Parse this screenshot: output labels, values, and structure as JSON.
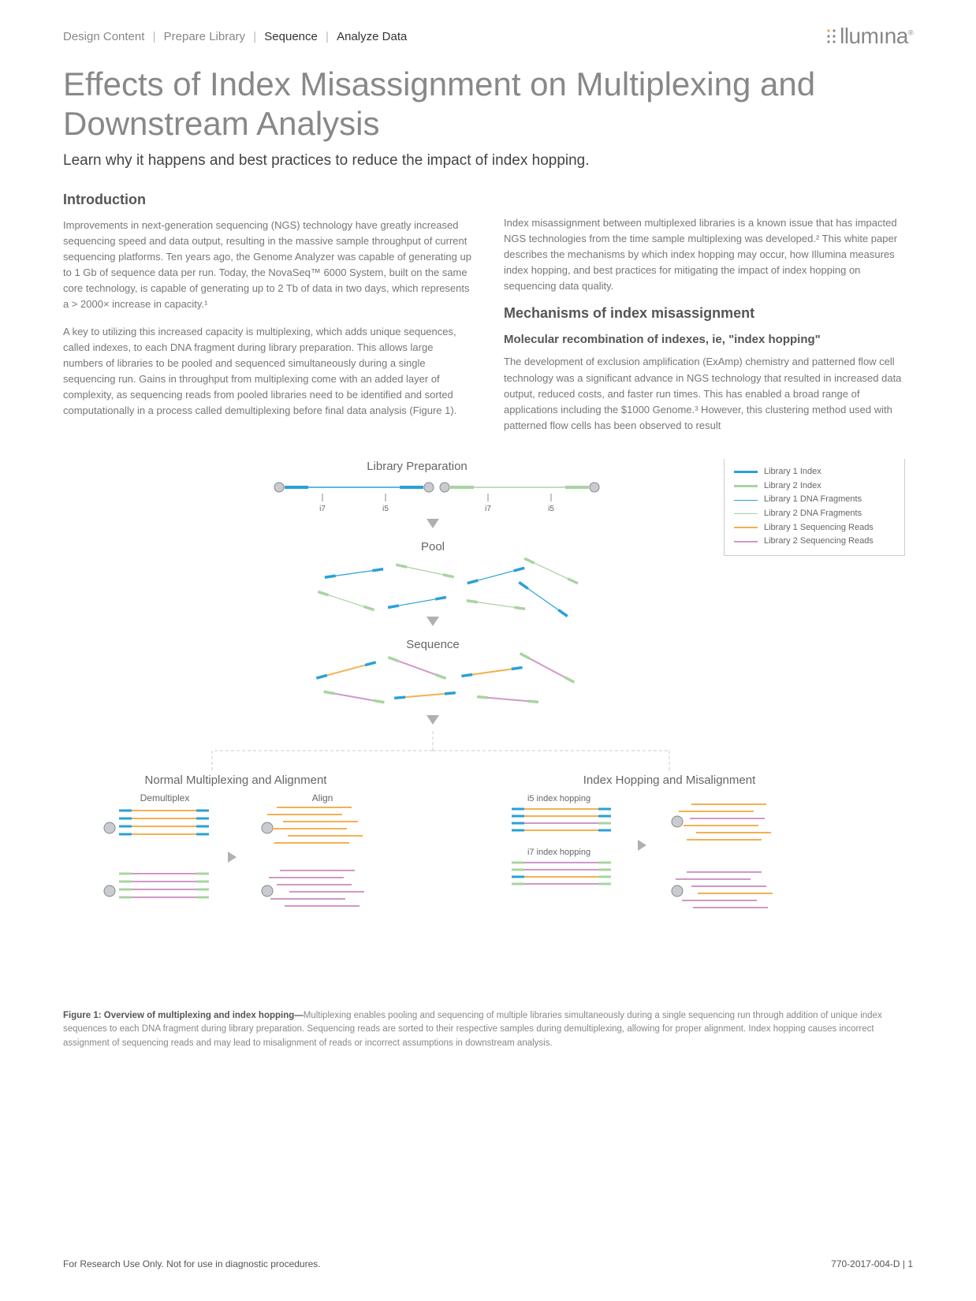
{
  "breadcrumb": {
    "items": [
      "Design Content",
      "Prepare Library",
      "Sequence",
      "Analyze Data"
    ],
    "active_from_index": 2
  },
  "logo_text": "llumına",
  "logo_trademark": "®",
  "page_title": "Effects of Index Misassignment on Multiplexing and Downstream Analysis",
  "subtitle": "Learn why it happens and best practices to reduce the impact of index hopping.",
  "intro_heading": "Introduction",
  "intro_p1": "Improvements in next-generation sequencing (NGS) technology have greatly increased sequencing speed and data output, resulting in the massive sample throughput of current sequencing platforms. Ten years ago, the Genome Analyzer was capable of generating up to 1 Gb of sequence data per run. Today, the NovaSeq™ 6000 System, built on the same core technology, is capable of generating up to 2 Tb of data in two days, which represents a > 2000× increase in capacity.¹",
  "intro_p2": "A key to utilizing this increased capacity is multiplexing, which adds unique sequences, called indexes, to each DNA fragment during library preparation. This allows large numbers of libraries to be pooled and sequenced simultaneously during a single sequencing run. Gains in throughput from multiplexing come with an added layer of complexity, as sequencing reads from pooled libraries need to be identified and sorted computationally in a process called demultiplexing before final data analysis (Figure 1).",
  "right_p1": "Index misassignment between multiplexed libraries is a known issue that has impacted NGS technologies from the time sample multiplexing was developed.² This white paper describes the mechanisms by which index hopping may occur, how Illumina measures index hopping, and best practices for mitigating the impact of index hopping on sequencing data quality.",
  "mech_heading": "Mechanisms of index misassignment",
  "mech_sub": "Molecular recombination of indexes, ie, \"index hopping\"",
  "mech_p1": "The development of exclusion amplification (ExAmp) chemistry and patterned flow cell technology was a significant advance in NGS technology that resulted in increased data output, reduced costs, and faster run times. This has enabled a broad range of applications including the $1000 Genome.³ However, this clustering method used with patterned flow cells has been observed to result",
  "figure": {
    "title_top": "Library Preparation",
    "label_pool": "Pool",
    "label_sequence": "Sequence",
    "label_left": "Normal Multiplexing and Alignment",
    "label_right": "Index Hopping and Misalignment",
    "sub_demux": "Demultiplex",
    "sub_align": "Align",
    "sub_i5": "i5 index hopping",
    "sub_i7": "i7 index hopping",
    "index_labels": [
      "i7",
      "i5",
      "i7",
      "i5"
    ],
    "legend": [
      {
        "label": "Library 1 Index",
        "color": "#2aa0d8",
        "thick": 3
      },
      {
        "label": "Library 2 Index",
        "color": "#a8d4a0",
        "thick": 3
      },
      {
        "label": "Library 1 DNA Fragments",
        "color": "#2aa0d8",
        "thick": 1
      },
      {
        "label": "Library 2 DNA Fragments",
        "color": "#a8d4a0",
        "thick": 1
      },
      {
        "label": "Library 1 Sequencing Reads",
        "color": "#f4b050",
        "thick": 2
      },
      {
        "label": "Library 2 Sequencing Reads",
        "color": "#d098c8",
        "thick": 2
      }
    ],
    "colors": {
      "lib1_index": "#2aa0d8",
      "lib2_index": "#a8d4a0",
      "lib1_frag": "#2aa0d8",
      "lib2_frag": "#a8d4a0",
      "lib1_read": "#f4b050",
      "lib2_read": "#d098c8",
      "arrow": "#b0b0b0",
      "circle": "#9aa0a6",
      "divider": "#cccccc"
    }
  },
  "caption_bold": "Figure 1: Overview of multiplexing and index hopping—",
  "caption_text": "Multiplexing enables pooling and sequencing of multiple libraries simultaneously during a single sequencing run through addition of unique index sequences to each DNA fragment during library preparation. Sequencing reads are sorted to their respective samples during demultiplexing, allowing for proper alignment. Index hopping causes incorrect assignment of sequencing reads and may lead to misalignment of reads or incorrect assumptions in downstream analysis.",
  "footer_left": "For Research Use Only. Not for use in diagnostic procedures.",
  "footer_right": "770-2017-004-D |  1"
}
